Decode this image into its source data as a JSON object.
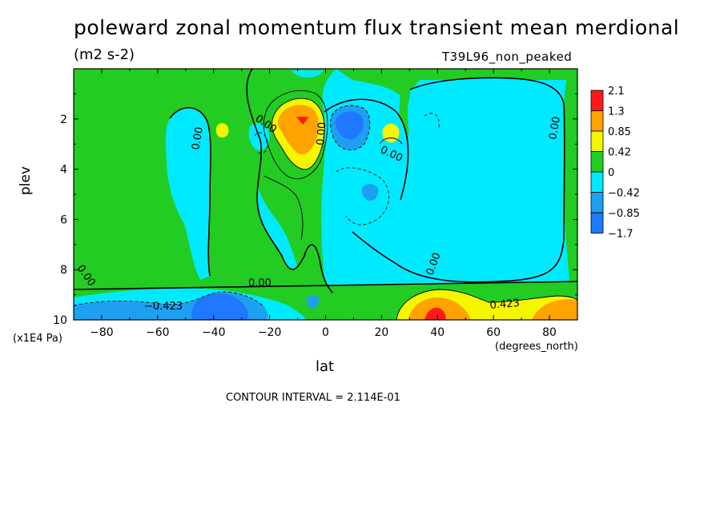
{
  "title": "poleward zonal momentum flux transient mean merdional",
  "units": "(m2 s-2)",
  "run_label": "T39L96_non_peaked",
  "ylabel": "plev",
  "y_unit": "(x1E4 Pa)",
  "xlabel": "lat",
  "x_unit": "(degrees_north)",
  "contour_interval_text": "CONTOUR INTERVAL = 2.114E-01",
  "colors": {
    "neg3": "#1f78ff",
    "neg2": "#1ea0f0",
    "neg1": "#00eaff",
    "zero": "#22cc22",
    "pos1": "#f5f500",
    "pos2": "#ffa300",
    "pos3": "#ff1a1a"
  },
  "chart_data": {
    "type": "contour",
    "title": "poleward zonal momentum flux transient mean merdional",
    "xlabel": "lat",
    "ylabel": "plev",
    "xlim": [
      -90,
      90
    ],
    "ylim": [
      10,
      0
    ],
    "x_ticks": [
      -80,
      -60,
      -40,
      -20,
      0,
      20,
      40,
      60,
      80
    ],
    "y_ticks": [
      2,
      4,
      6,
      8,
      10
    ],
    "contour_interval": 0.2114,
    "colorbar": {
      "levels": [
        "2.1",
        "1.3",
        "0.85",
        "0.42",
        "0",
        "-0.42",
        "-0.85",
        "-1.7"
      ],
      "colors": [
        "#ff1a1a",
        "#ffa300",
        "#f5f500",
        "#22cc22",
        "#00eaff",
        "#1ea0f0",
        "#1f78ff"
      ]
    },
    "contour_labels": [
      "0.00",
      "0.00",
      "0.00",
      "0.00",
      "0.00",
      "0.00",
      "0.00",
      "0.00",
      "-0.423",
      "0.423"
    ],
    "features": [
      {
        "lat": -8,
        "plev": 2.1,
        "level": "pos3"
      },
      {
        "lat": 8,
        "plev": 2.3,
        "level": "neg2"
      },
      {
        "lat": -37,
        "plev": 9.8,
        "level": "neg3"
      },
      {
        "lat": 38,
        "plev": 9.8,
        "level": "pos3"
      },
      {
        "lat": -36,
        "plev": 2.5,
        "level": "pos1"
      },
      {
        "lat": 24,
        "plev": 2.6,
        "level": "pos1"
      },
      {
        "lat": 17,
        "plev": 5.0,
        "level": "neg2"
      },
      {
        "lat": -24,
        "plev": 8.6,
        "level": "neg1"
      }
    ]
  }
}
